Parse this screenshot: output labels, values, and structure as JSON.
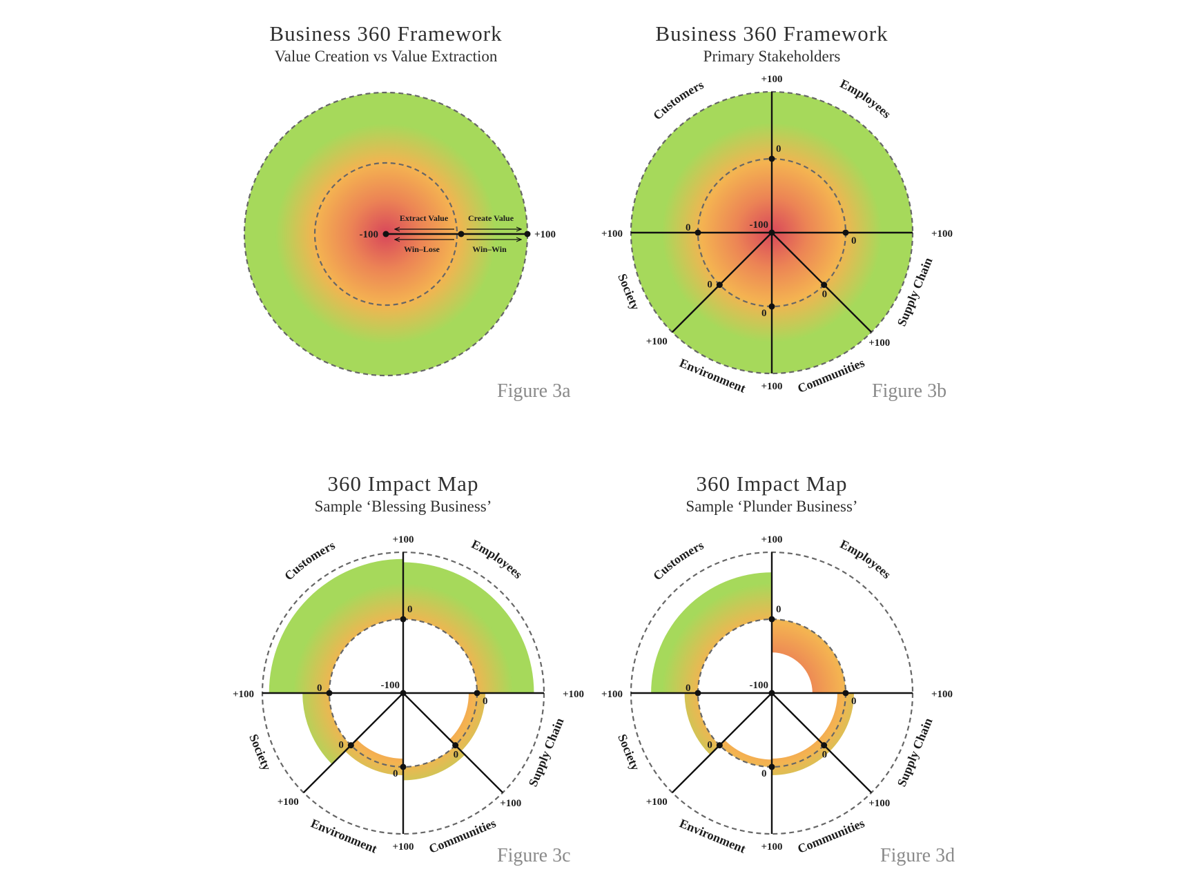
{
  "colors": {
    "inner": "#d8475a",
    "middle": "#f4b351",
    "outer": "#a6d95b",
    "axis": "#111111",
    "figure_label": "#8a8a8a"
  },
  "stakeholders": [
    "Customers",
    "Employees",
    "Supply Chain",
    "Communities",
    "Environment",
    "Society"
  ],
  "axis_labels": {
    "center": "-100",
    "zero": "0",
    "outer": "+100"
  },
  "fig3a": {
    "title": "Business 360 Framework",
    "subtitle": "Value Creation vs Value Extraction",
    "figure_label": "Figure 3a",
    "extract_label": "Extract Value",
    "create_label": "Create Value",
    "win_lose_label": "Win–Lose",
    "win_win_label": "Win–Win",
    "left_value": "-100",
    "right_value": "+100"
  },
  "fig3b": {
    "title": "Business 360 Framework",
    "subtitle": "Primary Stakeholders",
    "figure_label": "Figure 3b"
  },
  "fig3c": {
    "title": "360 Impact Map",
    "subtitle": "Sample ‘Blessing Business’",
    "figure_label": "Figure 3c",
    "values": {
      "Customers": 90,
      "Employees": 85,
      "Supply Chain": 0,
      "Communities": 20,
      "Environment": 0,
      "Society": 40
    }
  },
  "fig3d": {
    "title": "360 Impact Map",
    "subtitle": "Sample ‘Plunder Business’",
    "figure_label": "Figure 3d",
    "values": {
      "Customers": 70,
      "Employees": -45,
      "Supply Chain": 0,
      "Communities": 0,
      "Environment": -10,
      "Society": 20
    }
  }
}
